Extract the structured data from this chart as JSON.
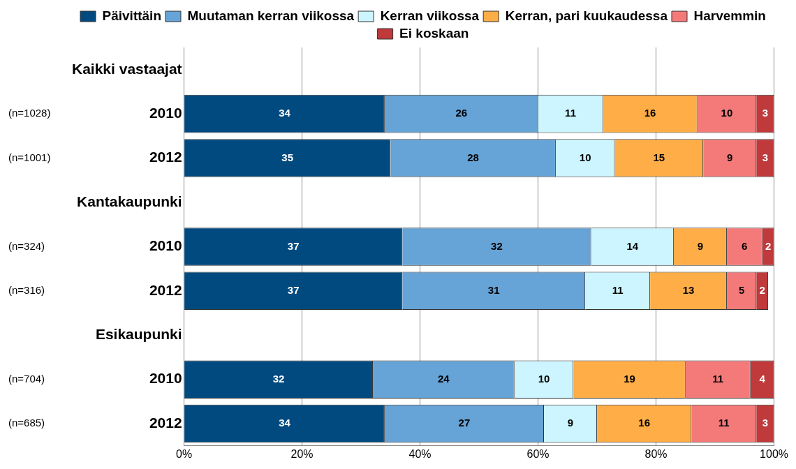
{
  "chart_data": {
    "type": "bar",
    "orientation": "horizontal",
    "stacked": true,
    "categories": [
      "Kaikki vastaajat",
      "2010",
      "2012",
      "Kantakaupunki",
      "2010",
      "2012",
      "Esikaupunki",
      "2010",
      "2012"
    ],
    "series": [
      {
        "name": "Päivittäin",
        "color": "#004a80",
        "values": [
          null,
          34,
          35,
          null,
          37,
          37,
          null,
          32,
          34
        ]
      },
      {
        "name": "Muutaman kerran viikossa",
        "color": "#66a3d6",
        "values": [
          null,
          26,
          28,
          null,
          32,
          31,
          null,
          24,
          27
        ]
      },
      {
        "name": "Kerran viikossa",
        "color": "#ccf5ff",
        "values": [
          null,
          11,
          10,
          null,
          14,
          11,
          null,
          10,
          9
        ]
      },
      {
        "name": "Kerran, pari kuukaudessa",
        "color": "#ffad47",
        "values": [
          null,
          16,
          15,
          null,
          9,
          13,
          null,
          19,
          16
        ]
      },
      {
        "name": "Harvemmin",
        "color": "#f47a7a",
        "values": [
          null,
          10,
          9,
          null,
          6,
          5,
          null,
          11,
          11
        ]
      },
      {
        "name": "Ei koskaan",
        "color": "#c0393b",
        "values": [
          null,
          3,
          3,
          null,
          2,
          2,
          null,
          4,
          3
        ]
      }
    ],
    "xlim": [
      0,
      100
    ],
    "xticks": [
      {
        "value": 0,
        "label": "0%"
      },
      {
        "value": 20,
        "label": "20%"
      },
      {
        "value": 40,
        "label": "40%"
      },
      {
        "value": 60,
        "label": "60%"
      },
      {
        "value": 80,
        "label": "80%"
      },
      {
        "value": 100,
        "label": "100%"
      }
    ],
    "grid": "x",
    "legend": "top",
    "data_labels": true,
    "annotations": [
      "(n=1028)",
      "(n=1001)",
      "(n=324)",
      "(n=316)",
      "(n=704)",
      "(n=685)"
    ]
  }
}
